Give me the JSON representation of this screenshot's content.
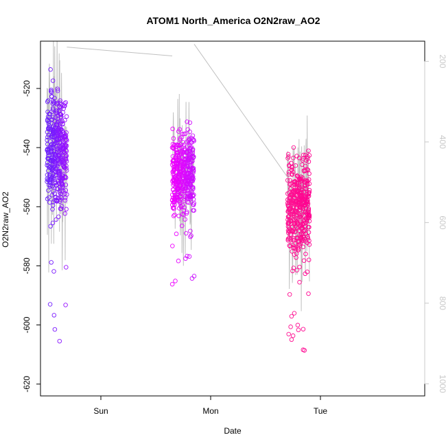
{
  "chart_data": {
    "type": "scatter",
    "title": "ATOM1 North_America O2N2raw_AO2",
    "xlabel": "Date",
    "ylabel": "O2N2raw_AO2",
    "x_ticks": [
      "Sun",
      "Mon",
      "Tue"
    ],
    "y_ticks": [
      -520,
      -540,
      -560,
      -580,
      -600,
      -620
    ],
    "y_right_ticks": [
      200,
      400,
      600,
      800,
      1000
    ],
    "ylim": [
      -624,
      -504
    ],
    "y_right_lim": [
      1030,
      150
    ],
    "x_range_days": [
      -0.55,
      2.95
    ],
    "clusters": [
      {
        "x_center": -0.4,
        "x_spread": 0.09,
        "y_center": -540,
        "y_spread": 14,
        "y_min": -610,
        "y_max": -511,
        "color_from": "#6a20ff",
        "color_to": "#9a10ff"
      },
      {
        "x_center": 0.75,
        "x_spread": 0.1,
        "y_center": -549,
        "y_spread": 10,
        "y_min": -587,
        "y_max": -517,
        "color_from": "#f000ff",
        "color_to": "#c810ff"
      },
      {
        "x_center": 1.8,
        "x_spread": 0.1,
        "y_center": -560,
        "y_spread": 12,
        "y_min": -619,
        "y_max": -508,
        "color_from": "#ff1493",
        "color_to": "#ff0090"
      }
    ],
    "line_color": "#c0c0c0",
    "grid": false
  }
}
